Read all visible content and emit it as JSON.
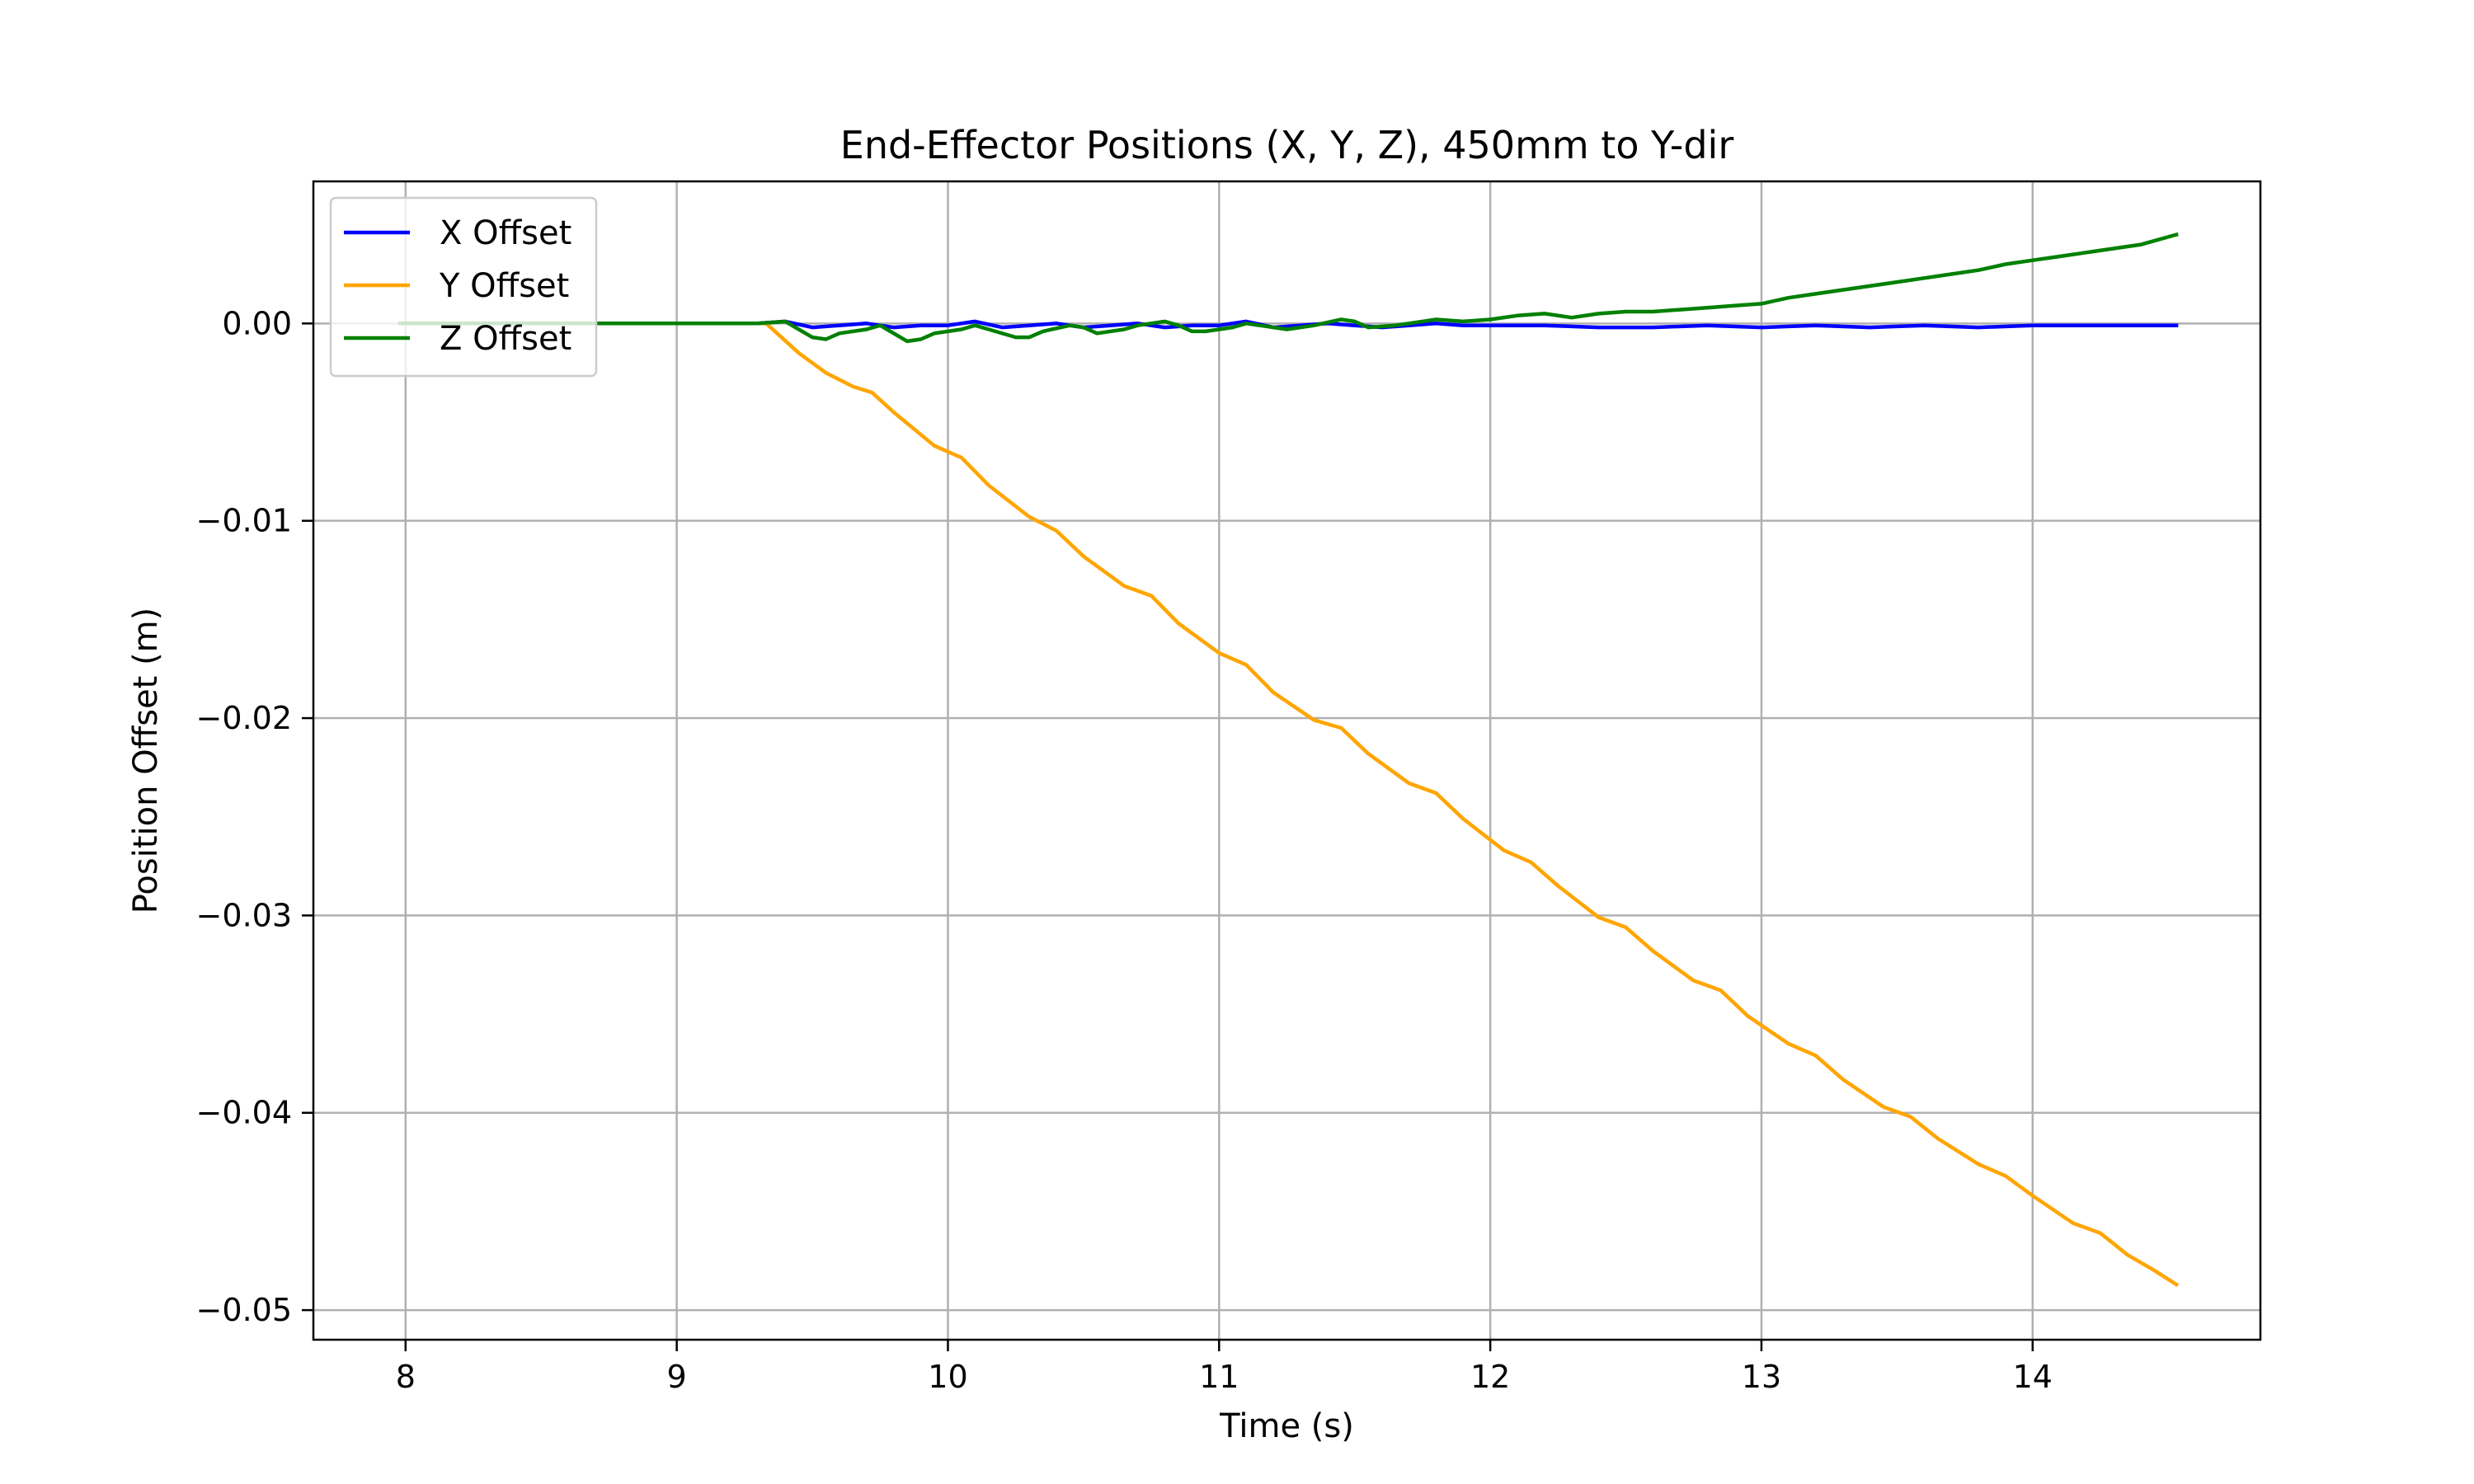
{
  "chart_data": {
    "type": "line",
    "title": "End-Effector Positions (X, Y, Z), 450mm to Y-dir",
    "xlabel": "Time (s)",
    "ylabel": "Position Offset (m)",
    "xlim": [
      7.66,
      14.84
    ],
    "ylim": [
      -0.0515,
      0.0072
    ],
    "xticks": [
      8,
      9,
      10,
      11,
      12,
      13,
      14
    ],
    "xtick_labels": [
      "8",
      "9",
      "10",
      "11",
      "12",
      "13",
      "14"
    ],
    "yticks": [
      0.0,
      -0.01,
      -0.02,
      -0.03,
      -0.04,
      -0.05
    ],
    "ytick_labels": [
      "0.00",
      "−0.01",
      "−0.02",
      "−0.03",
      "−0.04",
      "−0.05"
    ],
    "grid": true,
    "legend_position": "top-left",
    "series": [
      {
        "name": "X Offset",
        "color": "#0000ff",
        "x": [
          7.98,
          8.5,
          9.0,
          9.3,
          9.4,
          9.5,
          9.6,
          9.7,
          9.8,
          9.9,
          10.0,
          10.1,
          10.2,
          10.3,
          10.4,
          10.5,
          10.6,
          10.7,
          10.8,
          10.9,
          11.0,
          11.1,
          11.2,
          11.3,
          11.4,
          11.5,
          11.6,
          11.7,
          11.8,
          11.9,
          12.0,
          12.2,
          12.4,
          12.6,
          12.8,
          13.0,
          13.2,
          13.4,
          13.6,
          13.8,
          14.0,
          14.2,
          14.4,
          14.53
        ],
        "y": [
          0.0,
          0.0,
          0.0,
          0.0,
          0.0001,
          -0.0002,
          -0.0001,
          0.0,
          -0.0002,
          -0.0001,
          -0.0001,
          0.0001,
          -0.0002,
          -0.0001,
          0.0,
          -0.0002,
          -0.0001,
          0.0,
          -0.0002,
          -0.0001,
          -0.0001,
          0.0001,
          -0.0002,
          -0.0001,
          0.0,
          -0.0001,
          -0.0002,
          -0.0001,
          0.0,
          -0.0001,
          -0.0001,
          -0.0001,
          -0.0002,
          -0.0002,
          -0.0001,
          -0.0002,
          -0.0001,
          -0.0002,
          -0.0001,
          -0.0002,
          -0.0001,
          -0.0001,
          -0.0001,
          -0.0001
        ]
      },
      {
        "name": "Y Offset",
        "color": "#ffa500",
        "x": [
          7.98,
          8.5,
          9.0,
          9.33,
          9.45,
          9.55,
          9.65,
          9.72,
          9.8,
          9.95,
          10.05,
          10.15,
          10.3,
          10.4,
          10.5,
          10.65,
          10.75,
          10.85,
          11.0,
          11.1,
          11.2,
          11.35,
          11.45,
          11.55,
          11.7,
          11.8,
          11.9,
          12.05,
          12.15,
          12.25,
          12.4,
          12.5,
          12.6,
          12.75,
          12.85,
          12.95,
          13.1,
          13.2,
          13.3,
          13.45,
          13.55,
          13.65,
          13.8,
          13.9,
          14.0,
          14.15,
          14.25,
          14.35,
          14.45,
          14.53
        ],
        "y": [
          0.0,
          0.0,
          0.0,
          0.0,
          -0.0015,
          -0.0025,
          -0.0032,
          -0.0035,
          -0.0045,
          -0.0062,
          -0.0068,
          -0.0082,
          -0.0098,
          -0.0105,
          -0.0118,
          -0.0133,
          -0.0138,
          -0.0152,
          -0.0167,
          -0.0173,
          -0.0187,
          -0.0201,
          -0.0205,
          -0.0218,
          -0.0233,
          -0.0238,
          -0.0251,
          -0.0267,
          -0.0273,
          -0.0285,
          -0.0301,
          -0.0306,
          -0.0318,
          -0.0333,
          -0.0338,
          -0.0351,
          -0.0365,
          -0.0371,
          -0.0383,
          -0.0397,
          -0.0402,
          -0.0413,
          -0.0426,
          -0.0432,
          -0.0442,
          -0.0456,
          -0.0461,
          -0.0472,
          -0.048,
          -0.0487
        ]
      },
      {
        "name": "Z Offset",
        "color": "#008000",
        "x": [
          7.98,
          8.5,
          9.0,
          9.3,
          9.4,
          9.5,
          9.55,
          9.6,
          9.7,
          9.75,
          9.85,
          9.9,
          9.95,
          10.05,
          10.1,
          10.15,
          10.25,
          10.3,
          10.35,
          10.45,
          10.5,
          10.55,
          10.65,
          10.7,
          10.8,
          10.85,
          10.9,
          10.95,
          11.05,
          11.1,
          11.15,
          11.25,
          11.3,
          11.35,
          11.45,
          11.5,
          11.55,
          11.65,
          11.7,
          11.8,
          11.9,
          12.0,
          12.1,
          12.2,
          12.3,
          12.4,
          12.5,
          12.6,
          12.7,
          12.8,
          12.9,
          13.0,
          13.1,
          13.2,
          13.3,
          13.4,
          13.5,
          13.6,
          13.7,
          13.8,
          13.9,
          14.0,
          14.1,
          14.2,
          14.3,
          14.4,
          14.53
        ],
        "y": [
          0.0,
          0.0,
          0.0,
          0.0,
          0.0001,
          -0.0007,
          -0.0008,
          -0.0005,
          -0.0003,
          -0.0001,
          -0.0009,
          -0.0008,
          -0.0005,
          -0.0003,
          -0.0001,
          -0.0003,
          -0.0007,
          -0.0007,
          -0.0004,
          -0.0001,
          -0.0002,
          -0.0005,
          -0.0003,
          -0.0001,
          0.0001,
          -0.0001,
          -0.0004,
          -0.0004,
          -0.0002,
          0.0,
          -0.0001,
          -0.0003,
          -0.0002,
          -0.0001,
          0.0002,
          0.0001,
          -0.0002,
          -0.0001,
          0.0,
          0.0002,
          0.0001,
          0.0002,
          0.0004,
          0.0005,
          0.0003,
          0.0005,
          0.0006,
          0.0006,
          0.0007,
          0.0008,
          0.0009,
          0.001,
          0.0013,
          0.0015,
          0.0017,
          0.0019,
          0.0021,
          0.0023,
          0.0025,
          0.0027,
          0.003,
          0.0032,
          0.0034,
          0.0036,
          0.0038,
          0.004,
          0.0045
        ]
      }
    ]
  }
}
